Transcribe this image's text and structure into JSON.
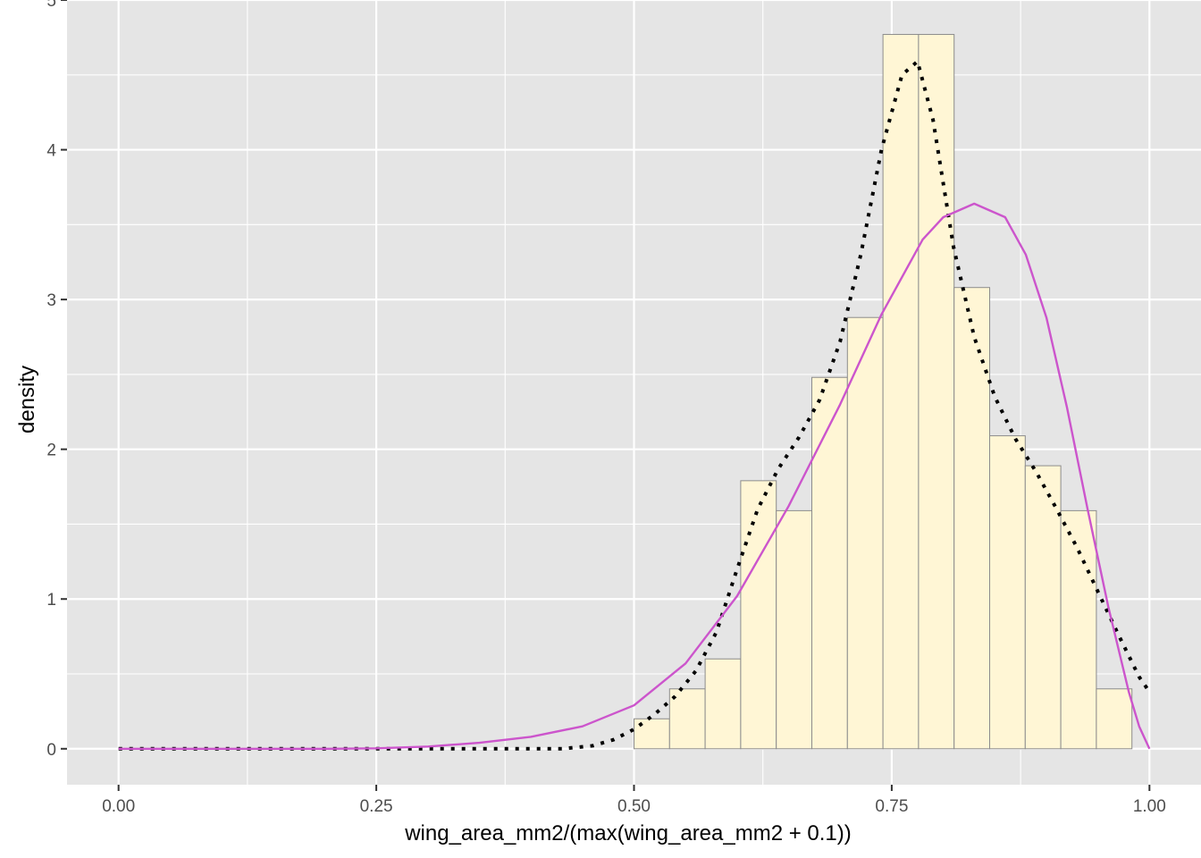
{
  "chart_data": {
    "type": "histogram",
    "xlabel": "wing_area_mm2/(max(wing_area_mm2 + 0.1))",
    "ylabel": "density",
    "xlim": [
      -0.05,
      1.05
    ],
    "ylim": [
      -0.24,
      5
    ],
    "x_ticks": [
      0.0,
      0.25,
      0.5,
      0.75,
      1.0
    ],
    "x_tick_labels": [
      "0.00",
      "0.25",
      "0.50",
      "0.75",
      "1.00"
    ],
    "y_ticks": [
      0,
      1,
      2,
      3,
      4,
      5
    ],
    "y_tick_labels": [
      "0",
      "1",
      "2",
      "3",
      "4",
      "5"
    ],
    "grid": true,
    "background": "#e5e5e5",
    "histogram": {
      "fill": "#fff6d5",
      "stroke": "#8c8c8c",
      "bin_width": 0.0345,
      "bin_starts": [
        0.5,
        0.5345,
        0.569,
        0.6035,
        0.638,
        0.6725,
        0.707,
        0.7415,
        0.776,
        0.8105,
        0.845,
        0.8795,
        0.914,
        0.9485
      ],
      "density": [
        0.2,
        0.4,
        0.6,
        1.79,
        1.59,
        2.48,
        2.88,
        4.77,
        4.77,
        3.08,
        2.09,
        1.89,
        1.59,
        0.4
      ]
    },
    "series": [
      {
        "kind": "kernel-density",
        "color": "#000000",
        "dash": "dotted",
        "x": [
          0.0,
          0.05,
          0.1,
          0.15,
          0.2,
          0.25,
          0.3,
          0.35,
          0.4,
          0.43,
          0.46,
          0.48,
          0.5,
          0.52,
          0.54,
          0.56,
          0.58,
          0.6,
          0.62,
          0.64,
          0.66,
          0.68,
          0.7,
          0.72,
          0.74,
          0.76,
          0.775,
          0.79,
          0.81,
          0.83,
          0.85,
          0.87,
          0.89,
          0.91,
          0.93,
          0.95,
          0.97,
          0.99,
          1.0
        ],
        "y": [
          0,
          0,
          0,
          0,
          0,
          0,
          0,
          0,
          0,
          0,
          0.02,
          0.06,
          0.13,
          0.23,
          0.35,
          0.52,
          0.78,
          1.2,
          1.6,
          1.87,
          2.08,
          2.33,
          2.72,
          3.3,
          4.0,
          4.5,
          4.59,
          4.2,
          3.35,
          2.75,
          2.35,
          2.07,
          1.85,
          1.6,
          1.34,
          1.05,
          0.76,
          0.48,
          0.38
        ]
      },
      {
        "kind": "fitted-density",
        "color": "#cc55cc",
        "dash": "solid",
        "x": [
          0.0,
          0.1,
          0.2,
          0.25,
          0.3,
          0.35,
          0.4,
          0.45,
          0.5,
          0.55,
          0.6,
          0.65,
          0.7,
          0.74,
          0.78,
          0.8,
          0.83,
          0.86,
          0.88,
          0.9,
          0.92,
          0.94,
          0.96,
          0.98,
          0.99,
          1.0
        ],
        "y": [
          0,
          0,
          0,
          0.003,
          0.015,
          0.04,
          0.08,
          0.15,
          0.29,
          0.57,
          1.02,
          1.62,
          2.3,
          2.9,
          3.4,
          3.55,
          3.64,
          3.55,
          3.3,
          2.88,
          2.28,
          1.6,
          0.95,
          0.38,
          0.15,
          0.0
        ]
      }
    ]
  }
}
